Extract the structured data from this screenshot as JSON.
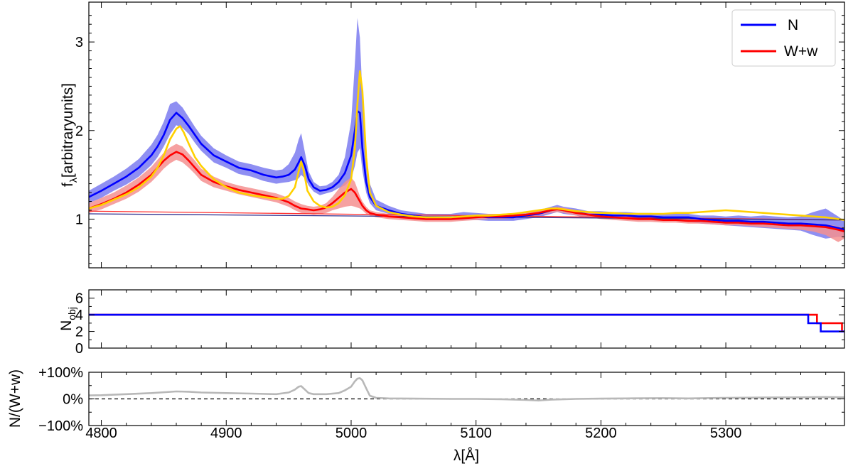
{
  "chart_data": [
    {
      "type": "line",
      "panel": "spectrum",
      "ylabel": "f",
      "ylabel_sub": "λ",
      "ylabel_unit": "[arbitraryunits]",
      "xlim": [
        4790,
        5395
      ],
      "ylim": [
        0.45,
        3.45
      ],
      "yticks": [
        1,
        2,
        3
      ],
      "ytick_labels": [
        "1",
        "2",
        "3"
      ],
      "legend": {
        "position": "top-right",
        "entries": [
          {
            "label": "N",
            "color": "#0000ff"
          },
          {
            "label": "W+w",
            "color": "#ff0000"
          }
        ]
      },
      "series": [
        {
          "name": "N",
          "color": "#0000ff",
          "band_color": "#7b7bf0",
          "x": [
            4790,
            4800,
            4810,
            4820,
            4830,
            4840,
            4845,
            4850,
            4855,
            4860,
            4865,
            4870,
            4875,
            4880,
            4890,
            4900,
            4910,
            4920,
            4930,
            4940,
            4945,
            4950,
            4955,
            4958,
            4960,
            4963,
            4966,
            4970,
            4975,
            4980,
            4985,
            4990,
            4995,
            5000,
            5003,
            5005,
            5007,
            5009,
            5012,
            5015,
            5020,
            5030,
            5040,
            5050,
            5060,
            5070,
            5080,
            5090,
            5100,
            5110,
            5120,
            5130,
            5140,
            5150,
            5160,
            5165,
            5170,
            5180,
            5190,
            5200,
            5210,
            5220,
            5230,
            5240,
            5250,
            5260,
            5270,
            5280,
            5290,
            5300,
            5310,
            5320,
            5330,
            5340,
            5350,
            5360,
            5370,
            5380,
            5390,
            5395
          ],
          "values": [
            1.25,
            1.32,
            1.4,
            1.48,
            1.58,
            1.72,
            1.82,
            1.95,
            2.12,
            2.2,
            2.14,
            2.05,
            1.95,
            1.85,
            1.72,
            1.65,
            1.58,
            1.55,
            1.5,
            1.47,
            1.48,
            1.5,
            1.56,
            1.64,
            1.7,
            1.6,
            1.45,
            1.36,
            1.32,
            1.33,
            1.36,
            1.42,
            1.52,
            1.72,
            2.0,
            2.22,
            2.2,
            1.8,
            1.42,
            1.25,
            1.15,
            1.1,
            1.06,
            1.04,
            1.02,
            1.02,
            1.02,
            1.03,
            1.03,
            1.02,
            1.02,
            1.02,
            1.04,
            1.06,
            1.1,
            1.12,
            1.1,
            1.08,
            1.05,
            1.05,
            1.04,
            1.04,
            1.03,
            1.03,
            1.02,
            1.02,
            1.02,
            1.0,
            0.99,
            0.98,
            0.98,
            0.97,
            0.97,
            0.96,
            0.95,
            0.95,
            0.94,
            0.93,
            0.9,
            0.88
          ],
          "band_upper": [
            1.32,
            1.4,
            1.48,
            1.57,
            1.68,
            1.84,
            1.95,
            2.1,
            2.3,
            2.33,
            2.26,
            2.15,
            2.04,
            1.94,
            1.8,
            1.72,
            1.65,
            1.62,
            1.58,
            1.55,
            1.56,
            1.62,
            1.75,
            1.9,
            1.97,
            1.75,
            1.54,
            1.42,
            1.37,
            1.38,
            1.42,
            1.5,
            1.7,
            2.1,
            2.75,
            3.27,
            3.05,
            2.4,
            1.7,
            1.4,
            1.22,
            1.15,
            1.1,
            1.08,
            1.06,
            1.06,
            1.06,
            1.08,
            1.07,
            1.06,
            1.06,
            1.06,
            1.08,
            1.1,
            1.14,
            1.16,
            1.14,
            1.12,
            1.09,
            1.09,
            1.08,
            1.08,
            1.07,
            1.07,
            1.06,
            1.06,
            1.06,
            1.04,
            1.04,
            1.03,
            1.04,
            1.03,
            1.04,
            1.03,
            1.02,
            1.03,
            1.08,
            1.12,
            1.03,
            0.98
          ],
          "band_lower": [
            1.18,
            1.24,
            1.32,
            1.39,
            1.48,
            1.61,
            1.7,
            1.82,
            1.96,
            2.06,
            2.03,
            1.96,
            1.86,
            1.77,
            1.64,
            1.58,
            1.51,
            1.48,
            1.43,
            1.4,
            1.41,
            1.42,
            1.44,
            1.46,
            1.5,
            1.46,
            1.38,
            1.31,
            1.27,
            1.29,
            1.31,
            1.35,
            1.38,
            1.45,
            1.6,
            1.75,
            1.8,
            1.55,
            1.3,
            1.18,
            1.1,
            1.06,
            1.02,
            1.0,
            0.99,
            0.99,
            0.99,
            0.99,
            0.99,
            0.98,
            0.98,
            0.98,
            1.0,
            1.02,
            1.06,
            1.08,
            1.06,
            1.04,
            1.01,
            1.01,
            1.0,
            1.0,
            0.99,
            0.99,
            0.98,
            0.98,
            0.97,
            0.95,
            0.94,
            0.93,
            0.92,
            0.91,
            0.9,
            0.89,
            0.88,
            0.87,
            0.82,
            0.78,
            0.8,
            0.8
          ]
        },
        {
          "name": "W+w",
          "color": "#ff0000",
          "band_color": "#f49090",
          "x": [
            4790,
            4800,
            4810,
            4820,
            4830,
            4840,
            4845,
            4850,
            4855,
            4860,
            4865,
            4870,
            4875,
            4880,
            4890,
            4900,
            4910,
            4920,
            4930,
            4940,
            4950,
            4955,
            4960,
            4965,
            4970,
            4975,
            4980,
            4985,
            4990,
            4995,
            5000,
            5003,
            5005,
            5007,
            5009,
            5012,
            5015,
            5020,
            5030,
            5040,
            5050,
            5060,
            5070,
            5080,
            5090,
            5100,
            5110,
            5120,
            5130,
            5140,
            5150,
            5160,
            5165,
            5170,
            5180,
            5190,
            5200,
            5210,
            5220,
            5230,
            5240,
            5250,
            5260,
            5270,
            5280,
            5290,
            5300,
            5310,
            5320,
            5330,
            5340,
            5350,
            5360,
            5370,
            5380,
            5390,
            5395
          ],
          "values": [
            1.12,
            1.17,
            1.23,
            1.3,
            1.39,
            1.5,
            1.58,
            1.66,
            1.72,
            1.76,
            1.73,
            1.66,
            1.58,
            1.5,
            1.42,
            1.37,
            1.33,
            1.3,
            1.27,
            1.24,
            1.19,
            1.15,
            1.12,
            1.11,
            1.1,
            1.11,
            1.13,
            1.18,
            1.24,
            1.3,
            1.34,
            1.3,
            1.25,
            1.2,
            1.15,
            1.1,
            1.07,
            1.05,
            1.03,
            1.02,
            1.01,
            1.0,
            1.0,
            1.0,
            1.01,
            1.02,
            1.03,
            1.03,
            1.04,
            1.05,
            1.07,
            1.1,
            1.11,
            1.1,
            1.07,
            1.05,
            1.03,
            1.02,
            1.01,
            1.0,
            1.0,
            0.99,
            0.99,
            0.98,
            0.98,
            0.97,
            0.96,
            0.96,
            0.95,
            0.95,
            0.94,
            0.93,
            0.93,
            0.92,
            0.91,
            0.88,
            0.86
          ],
          "band_upper": [
            1.18,
            1.24,
            1.3,
            1.38,
            1.47,
            1.59,
            1.67,
            1.75,
            1.81,
            1.85,
            1.82,
            1.74,
            1.66,
            1.57,
            1.48,
            1.42,
            1.38,
            1.35,
            1.32,
            1.29,
            1.24,
            1.2,
            1.17,
            1.15,
            1.14,
            1.15,
            1.18,
            1.25,
            1.34,
            1.42,
            1.47,
            1.42,
            1.34,
            1.26,
            1.2,
            1.14,
            1.1,
            1.08,
            1.06,
            1.05,
            1.04,
            1.03,
            1.03,
            1.03,
            1.04,
            1.05,
            1.06,
            1.06,
            1.07,
            1.08,
            1.1,
            1.13,
            1.14,
            1.13,
            1.1,
            1.08,
            1.06,
            1.05,
            1.04,
            1.03,
            1.03,
            1.02,
            1.02,
            1.01,
            1.01,
            1.0,
            0.99,
            0.99,
            0.98,
            0.98,
            0.97,
            0.96,
            0.96,
            0.95,
            0.94,
            0.92,
            0.9
          ],
          "band_lower": [
            1.07,
            1.11,
            1.17,
            1.23,
            1.31,
            1.42,
            1.49,
            1.57,
            1.63,
            1.67,
            1.64,
            1.58,
            1.51,
            1.43,
            1.36,
            1.32,
            1.28,
            1.25,
            1.22,
            1.19,
            1.14,
            1.1,
            1.07,
            1.06,
            1.05,
            1.06,
            1.07,
            1.1,
            1.12,
            1.14,
            1.15,
            1.14,
            1.13,
            1.12,
            1.1,
            1.06,
            1.04,
            1.02,
            1.0,
            0.99,
            0.98,
            0.97,
            0.97,
            0.97,
            0.98,
            0.99,
            1.0,
            1.0,
            1.01,
            1.02,
            1.04,
            1.07,
            1.08,
            1.07,
            1.04,
            1.02,
            1.0,
            0.99,
            0.98,
            0.97,
            0.97,
            0.96,
            0.96,
            0.95,
            0.95,
            0.94,
            0.93,
            0.93,
            0.92,
            0.91,
            0.9,
            0.89,
            0.88,
            0.86,
            0.82,
            0.74,
            0.78
          ]
        },
        {
          "color": "#ffd000",
          "x": [
            4790,
            4800,
            4810,
            4820,
            4830,
            4840,
            4845,
            4850,
            4855,
            4860,
            4863,
            4866,
            4870,
            4875,
            4880,
            4890,
            4900,
            4910,
            4920,
            4930,
            4940,
            4945,
            4950,
            4955,
            4958,
            4960,
            4962,
            4965,
            4970,
            4975,
            4980,
            4985,
            4990,
            4995,
            5000,
            5003,
            5005,
            5007,
            5009,
            5012,
            5015,
            5020,
            5030,
            5040,
            5050,
            5060,
            5070,
            5080,
            5090,
            5100,
            5110,
            5120,
            5130,
            5140,
            5150,
            5160,
            5165,
            5170,
            5180,
            5190,
            5200,
            5210,
            5220,
            5230,
            5240,
            5250,
            5260,
            5270,
            5280,
            5290,
            5300,
            5310,
            5320,
            5330,
            5340,
            5350,
            5360,
            5370,
            5380,
            5390,
            5395
          ],
          "values": [
            1.12,
            1.16,
            1.22,
            1.28,
            1.36,
            1.48,
            1.58,
            1.72,
            1.9,
            2.02,
            2.05,
            1.98,
            1.85,
            1.7,
            1.6,
            1.45,
            1.36,
            1.3,
            1.27,
            1.25,
            1.23,
            1.23,
            1.26,
            1.36,
            1.54,
            1.65,
            1.55,
            1.32,
            1.2,
            1.15,
            1.13,
            1.14,
            1.18,
            1.27,
            1.45,
            1.8,
            2.3,
            2.67,
            2.45,
            1.7,
            1.3,
            1.15,
            1.08,
            1.05,
            1.03,
            1.02,
            1.02,
            1.02,
            1.03,
            1.04,
            1.04,
            1.05,
            1.06,
            1.08,
            1.1,
            1.12,
            1.12,
            1.11,
            1.09,
            1.08,
            1.07,
            1.07,
            1.06,
            1.06,
            1.06,
            1.06,
            1.07,
            1.07,
            1.08,
            1.09,
            1.1,
            1.09,
            1.08,
            1.07,
            1.06,
            1.05,
            1.04,
            1.03,
            1.02,
            1.0,
            0.99
          ]
        }
      ],
      "continuum": [
        {
          "color": "#ff3030",
          "x": [
            4790,
            5395
          ],
          "values": [
            1.09,
            0.99
          ]
        },
        {
          "color": "#30308f",
          "x": [
            4790,
            5395
          ],
          "values": [
            1.06,
            0.99
          ]
        }
      ]
    },
    {
      "type": "line",
      "panel": "count",
      "ylabel": "N",
      "ylabel_sub": "obj",
      "xlim": [
        4790,
        5395
      ],
      "ylim": [
        0,
        7
      ],
      "yticks": [
        0,
        2,
        4,
        6
      ],
      "ytick_labels": [
        "0",
        "2",
        "4",
        "6"
      ],
      "series": [
        {
          "name": "W+w",
          "color": "#ff0000",
          "step": true,
          "x": [
            4790,
            5369,
            5369,
            5373,
            5373,
            5393,
            5393,
            5395
          ],
          "values": [
            4,
            4,
            4,
            4,
            3,
            3,
            2,
            2
          ]
        },
        {
          "name": "N",
          "color": "#0000ff",
          "step": true,
          "x": [
            4790,
            5366,
            5366,
            5376,
            5376,
            5395
          ],
          "values": [
            4,
            4,
            3,
            3,
            2,
            2
          ]
        }
      ]
    },
    {
      "type": "line",
      "panel": "ratio",
      "ylabel": "N/(W+w)",
      "xlabel": "λ[Å]",
      "xlim": [
        4790,
        5395
      ],
      "ylim": [
        -100,
        100
      ],
      "xticks": [
        4800,
        4900,
        5000,
        5100,
        5200,
        5300
      ],
      "xtick_labels": [
        "4800",
        "4900",
        "5000",
        "5100",
        "5200",
        "5300"
      ],
      "yticks": [
        -100,
        0,
        100
      ],
      "ytick_labels": [
        "−100%",
        "0%",
        "+100%"
      ],
      "reference_line": {
        "y": 0,
        "style": "dashed",
        "color": "#000000"
      },
      "series": [
        {
          "color": "#b8b8b8",
          "x": [
            4790,
            4800,
            4820,
            4840,
            4860,
            4870,
            4880,
            4900,
            4920,
            4940,
            4950,
            4955,
            4958,
            4960,
            4963,
            4966,
            4970,
            4980,
            4990,
            4995,
            5000,
            5003,
            5005,
            5007,
            5009,
            5012,
            5015,
            5020,
            5030,
            5050,
            5080,
            5100,
            5120,
            5140,
            5150,
            5160,
            5180,
            5200,
            5220,
            5250,
            5270,
            5300,
            5330,
            5360,
            5380,
            5395
          ],
          "values": [
            13,
            14,
            18,
            22,
            28,
            27,
            24,
            22,
            20,
            18,
            24,
            35,
            46,
            48,
            35,
            22,
            18,
            18,
            22,
            32,
            46,
            66,
            76,
            78,
            70,
            40,
            12,
            4,
            2,
            1,
            0,
            0,
            -1,
            -4,
            -6,
            -3,
            0,
            1,
            2,
            3,
            2,
            4,
            5,
            6,
            7,
            6
          ]
        }
      ]
    }
  ]
}
